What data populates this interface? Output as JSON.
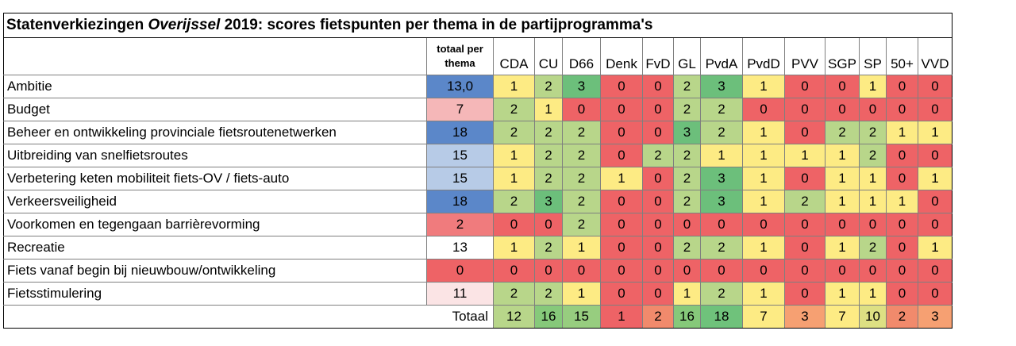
{
  "title_start": "Statenverkiezingen ",
  "title_italic": "Overijssel",
  "title_end": " 2019: scores fietspunten per thema in de partijprogramma's",
  "total_header": "totaal per thema",
  "parties": [
    "CDA",
    "CU",
    "D66",
    "Denk",
    "FvD",
    "GL",
    "PvdA",
    "PvdD",
    "PVV",
    "SGP",
    "SP",
    "50+",
    "VVD"
  ],
  "rows": [
    {
      "theme": "Ambitie",
      "total": "13,0",
      "total_color": "#5b87c9",
      "scores": [
        1,
        2,
        3,
        0,
        0,
        2,
        3,
        1,
        0,
        0,
        1,
        0,
        0
      ]
    },
    {
      "theme": "Budget",
      "total": "7",
      "total_color": "#f5b7b8",
      "scores": [
        2,
        1,
        0,
        0,
        0,
        2,
        2,
        0,
        0,
        0,
        0,
        0,
        0
      ]
    },
    {
      "theme": "Beheer en ontwikkeling provinciale fietsroutenetwerken",
      "total": "18",
      "total_color": "#5b87c9",
      "scores": [
        2,
        2,
        2,
        0,
        0,
        3,
        2,
        1,
        0,
        2,
        2,
        1,
        1
      ]
    },
    {
      "theme": "Uitbreiding van snelfietsroutes",
      "total": "15",
      "total_color": "#b7cbe7",
      "scores": [
        1,
        2,
        2,
        0,
        2,
        2,
        1,
        1,
        1,
        1,
        2,
        0,
        0
      ]
    },
    {
      "theme": "Verbetering keten mobiliteit fiets-OV / fiets-auto",
      "total": "15",
      "total_color": "#b7cbe7",
      "scores": [
        1,
        2,
        2,
        1,
        0,
        2,
        3,
        1,
        0,
        1,
        1,
        0,
        1
      ]
    },
    {
      "theme": "Verkeersveiligheid",
      "total": "18",
      "total_color": "#5b87c9",
      "scores": [
        2,
        3,
        2,
        0,
        0,
        2,
        3,
        1,
        2,
        1,
        1,
        1,
        0
      ]
    },
    {
      "theme": "Voorkomen en tegengaan barrièrevorming",
      "total": "2",
      "total_color": "#f07b7d",
      "scores": [
        0,
        0,
        2,
        0,
        0,
        0,
        0,
        0,
        0,
        0,
        0,
        0,
        0
      ]
    },
    {
      "theme": "Recreatie",
      "total": "13",
      "total_color": "#ffffff",
      "scores": [
        1,
        2,
        1,
        0,
        0,
        2,
        2,
        1,
        0,
        1,
        2,
        0,
        1
      ]
    },
    {
      "theme": "Fiets vanaf begin bij nieuwbouw/ontwikkeling",
      "total": "0",
      "total_color": "#ee6366",
      "scores": [
        0,
        0,
        0,
        0,
        0,
        0,
        0,
        0,
        0,
        0,
        0,
        0,
        0
      ]
    },
    {
      "theme": "Fietsstimulering",
      "total": "11",
      "total_color": "#fbe4e5",
      "scores": [
        2,
        2,
        1,
        0,
        0,
        1,
        2,
        1,
        0,
        1,
        1,
        0,
        0
      ]
    }
  ],
  "footer_label": "Totaal",
  "party_totals": [
    12,
    16,
    15,
    1,
    2,
    16,
    18,
    7,
    3,
    7,
    10,
    2,
    3
  ],
  "party_total_colors": [
    "#b8d68a",
    "#86c97a",
    "#97cd7f",
    "#ee6366",
    "#f18a6c",
    "#86c97a",
    "#6fc27b",
    "#fdeb84",
    "#f6a072",
    "#fdeb84",
    "#dde083",
    "#f18a6c",
    "#f6a072"
  ],
  "score_colors": {
    "0": "#ee6366",
    "1": "#fdeb84",
    "2": "#b8d68a",
    "3": "#6cbf7b"
  }
}
